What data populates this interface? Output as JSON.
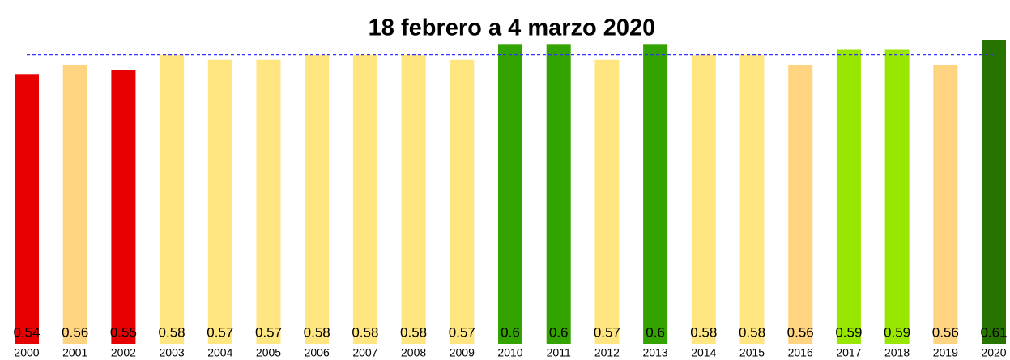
{
  "chart_data": {
    "type": "bar",
    "title": "18 febrero a 4 marzo 2020",
    "categories": [
      "2000",
      "2001",
      "2002",
      "2003",
      "2004",
      "2005",
      "2006",
      "2007",
      "2008",
      "2009",
      "2010",
      "2011",
      "2012",
      "2013",
      "2014",
      "2015",
      "2016",
      "2017",
      "2018",
      "2019",
      "2020"
    ],
    "values": [
      0.54,
      0.56,
      0.55,
      0.58,
      0.57,
      0.57,
      0.58,
      0.58,
      0.58,
      0.57,
      0.6,
      0.6,
      0.57,
      0.6,
      0.58,
      0.58,
      0.56,
      0.59,
      0.59,
      0.56,
      0.61
    ],
    "colors": [
      "#e60000",
      "#ffd480",
      "#e60000",
      "#ffe680",
      "#ffe680",
      "#ffe680",
      "#ffe680",
      "#ffe680",
      "#ffe680",
      "#ffe680",
      "#33a300",
      "#33a300",
      "#ffe680",
      "#33a300",
      "#ffe680",
      "#ffe680",
      "#ffd480",
      "#99e600",
      "#99e600",
      "#ffd480",
      "#267300"
    ],
    "ylim": [
      0,
      0.62
    ],
    "reference_line": 0.58
  }
}
